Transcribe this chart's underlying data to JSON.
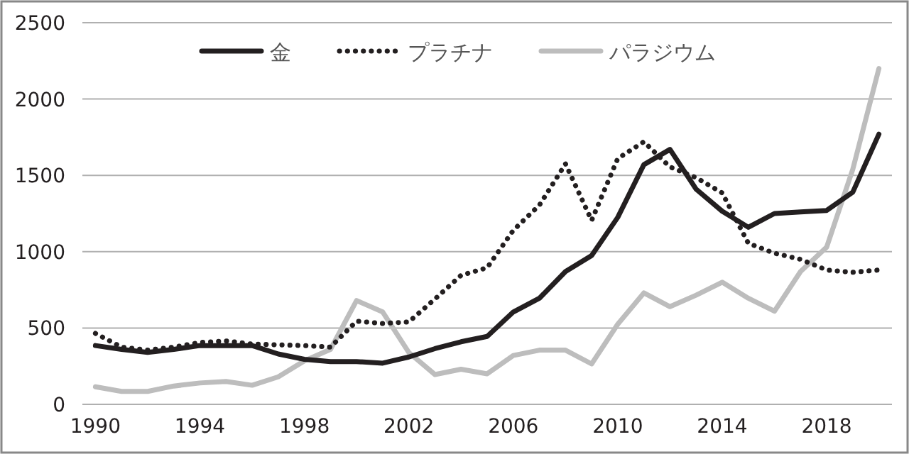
{
  "chart_data": {
    "type": "line",
    "x": [
      1990,
      1991,
      1992,
      1993,
      1994,
      1995,
      1996,
      1997,
      1998,
      1999,
      2000,
      2001,
      2002,
      2003,
      2004,
      2005,
      2006,
      2007,
      2008,
      2009,
      2010,
      2011,
      2012,
      2013,
      2014,
      2015,
      2016,
      2017,
      2018,
      2019,
      2020
    ],
    "series": [
      {
        "name": "金",
        "color": "#231f20",
        "line_style": "solid",
        "values": [
          385,
          360,
          340,
          360,
          385,
          385,
          385,
          330,
          295,
          280,
          280,
          270,
          310,
          365,
          410,
          445,
          605,
          695,
          870,
          975,
          1225,
          1570,
          1670,
          1410,
          1265,
          1160,
          1250,
          1260,
          1270,
          1390,
          1770
        ]
      },
      {
        "name": "プラチナ",
        "color": "#231f20",
        "line_style": "dotted",
        "values": [
          465,
          375,
          355,
          375,
          405,
          415,
          395,
          390,
          385,
          375,
          545,
          530,
          540,
          690,
          845,
          895,
          1140,
          1305,
          1575,
          1205,
          1610,
          1720,
          1555,
          1485,
          1385,
          1055,
          990,
          950,
          880,
          865,
          880
        ]
      },
      {
        "name": "パラジウム",
        "color": "#bdbdbd",
        "line_style": "solid",
        "values": [
          115,
          85,
          85,
          120,
          140,
          150,
          125,
          180,
          285,
          360,
          680,
          605,
          340,
          195,
          230,
          200,
          320,
          355,
          355,
          265,
          525,
          730,
          640,
          715,
          800,
          695,
          610,
          870,
          1030,
          1540,
          2200
        ]
      }
    ],
    "xlim": [
      1989.5,
      2020.5
    ],
    "xticks": [
      1990,
      1994,
      1998,
      2002,
      2006,
      2010,
      2014,
      2018
    ],
    "ylim": [
      0,
      2500
    ],
    "yticks": [
      0,
      500,
      1000,
      1500,
      2000,
      2500
    ],
    "grid": "y",
    "legend": "top"
  }
}
